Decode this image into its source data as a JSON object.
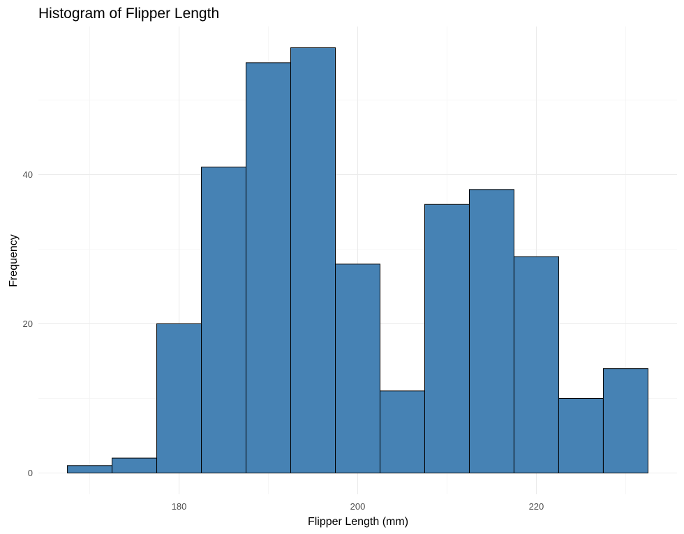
{
  "chart_data": {
    "type": "bar",
    "histogram": true,
    "title": "Histogram of Flipper Length",
    "xlabel": "Flipper Length (mm)",
    "ylabel": "Frequency",
    "bin_width": 5,
    "bins": [
      {
        "start": 167.5,
        "end": 172.5,
        "count": 1
      },
      {
        "start": 172.5,
        "end": 177.5,
        "count": 2
      },
      {
        "start": 177.5,
        "end": 182.5,
        "count": 20
      },
      {
        "start": 182.5,
        "end": 187.5,
        "count": 41
      },
      {
        "start": 187.5,
        "end": 192.5,
        "count": 55
      },
      {
        "start": 192.5,
        "end": 197.5,
        "count": 57
      },
      {
        "start": 197.5,
        "end": 202.5,
        "count": 28
      },
      {
        "start": 202.5,
        "end": 207.5,
        "count": 11
      },
      {
        "start": 207.5,
        "end": 212.5,
        "count": 36
      },
      {
        "start": 212.5,
        "end": 217.5,
        "count": 38
      },
      {
        "start": 217.5,
        "end": 222.5,
        "count": 29
      },
      {
        "start": 222.5,
        "end": 227.5,
        "count": 10
      },
      {
        "start": 227.5,
        "end": 232.5,
        "count": 14
      }
    ],
    "x_ticks": [
      180,
      200,
      220
    ],
    "y_ticks": [
      0,
      20,
      40
    ],
    "x_minor_ticks": [
      170,
      190,
      210,
      230
    ],
    "y_minor_ticks": [
      10,
      30,
      50
    ],
    "xlim": [
      164.25,
      235.75
    ],
    "ylim": [
      -2.85,
      59.85
    ],
    "grid": true,
    "legend": "none",
    "colors": {
      "bar_fill": "#4682B4",
      "bar_stroke": "#000000"
    }
  }
}
